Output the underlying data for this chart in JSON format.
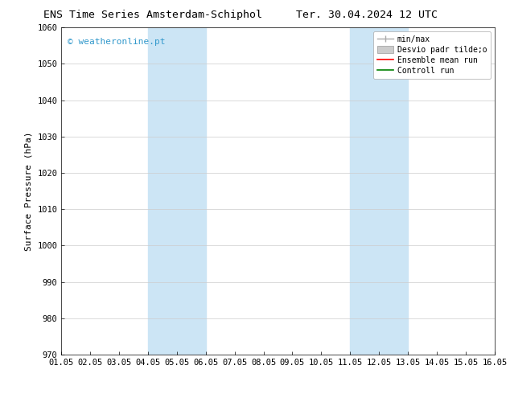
{
  "title_left": "ENS Time Series Amsterdam-Schiphol",
  "title_right": "Ter. 30.04.2024 12 UTC",
  "ylabel": "Surface Pressure (hPa)",
  "watermark": "© weatheronline.pt",
  "ylim": [
    970,
    1060
  ],
  "yticks": [
    970,
    980,
    990,
    1000,
    1010,
    1020,
    1030,
    1040,
    1050,
    1060
  ],
  "xtick_labels": [
    "01.05",
    "02.05",
    "03.05",
    "04.05",
    "05.05",
    "06.05",
    "07.05",
    "08.05",
    "09.05",
    "10.05",
    "11.05",
    "12.05",
    "13.05",
    "14.05",
    "15.05",
    "16.05"
  ],
  "xlim_start": 0,
  "xlim_end": 15,
  "shaded_regions": [
    {
      "xmin": 3,
      "xmax": 5,
      "color": "#cce5f5"
    },
    {
      "xmin": 10,
      "xmax": 12,
      "color": "#cce5f5"
    }
  ],
  "legend_labels": [
    "min/max",
    "Desvio padr tilde;o",
    "Ensemble mean run",
    "Controll run"
  ],
  "legend_colors": [
    "#aaaaaa",
    "#cccccc",
    "red",
    "green"
  ],
  "background_color": "#ffffff",
  "plot_bg_color": "#ffffff",
  "grid_color": "#cccccc",
  "title_fontsize": 9.5,
  "axis_fontsize": 7.5,
  "ylabel_fontsize": 8,
  "watermark_color": "#3399cc",
  "watermark_fontsize": 8,
  "legend_fontsize": 7
}
